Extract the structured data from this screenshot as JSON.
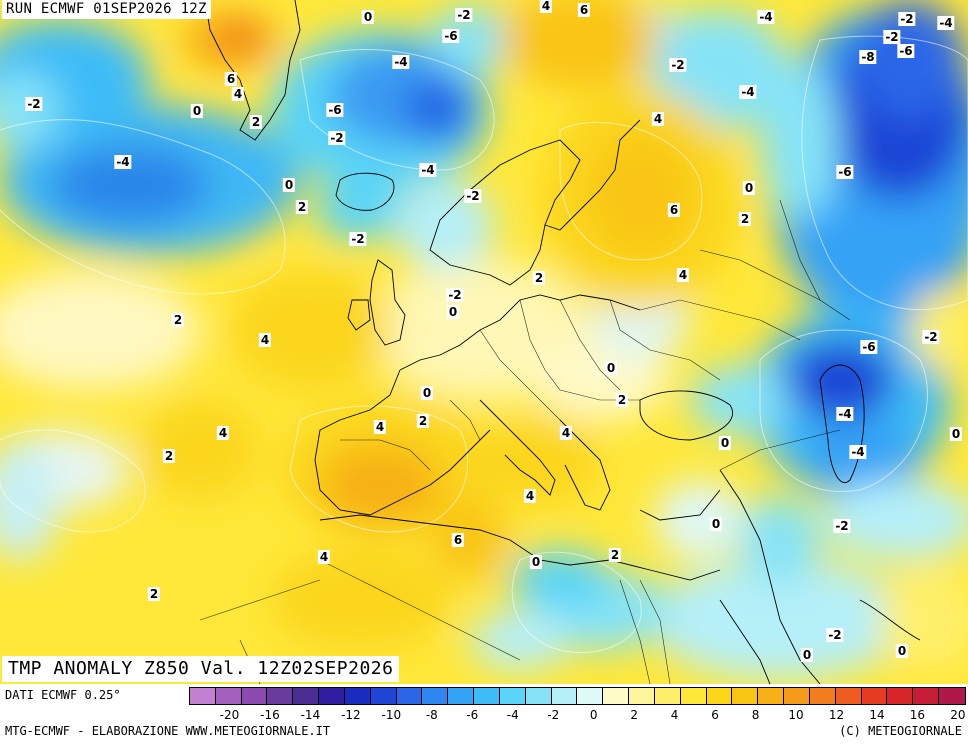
{
  "header": {
    "run_title": "RUN ECMWF 01SEP2026 12Z",
    "variable_title": "TMP ANOMALY Z850 Val. 12Z02SEP2026"
  },
  "footer": {
    "data_source": "DATI ECMWF 0.25°",
    "credit_left": "MTG-ECMWF - ELABORAZIONE WWW.METEOGIORNALE.IT",
    "credit_right": "(C) METEOGIORNALE"
  },
  "legend": {
    "colors": [
      "#c37fd2",
      "#a35fbe",
      "#8a4aae",
      "#6b3a9e",
      "#4b2d94",
      "#2f1fa0",
      "#1a2bbf",
      "#1e45d6",
      "#2a66e8",
      "#2f86f0",
      "#34a2f6",
      "#3dbcf8",
      "#5ad4f8",
      "#86e3f7",
      "#b5eff8",
      "#dff8f8",
      "#fffbc8",
      "#fff59a",
      "#fff06c",
      "#ffe83a",
      "#fbd61a",
      "#f9c514",
      "#f7b016",
      "#f6981a",
      "#f37d1e",
      "#ef5c20",
      "#e63c22",
      "#d72628",
      "#c51c38",
      "#b0184a"
    ],
    "ticks": [
      "-20",
      "-16",
      "-14",
      "-12",
      "-10",
      "-8",
      "-6",
      "-4",
      "-2",
      "0",
      "2",
      "4",
      "6",
      "8",
      "10",
      "12",
      "14",
      "16",
      "20"
    ]
  },
  "map": {
    "region": "Europe / North Atlantic",
    "contour_labels": [
      {
        "value": "0"
      },
      {
        "value": "-2"
      },
      {
        "value": "4"
      },
      {
        "value": "6"
      },
      {
        "value": "-4"
      },
      {
        "value": "-2"
      },
      {
        "value": "-2"
      },
      {
        "value": "-6"
      },
      {
        "value": "-4"
      },
      {
        "value": "-4"
      },
      {
        "value": "-8"
      },
      {
        "value": "-6"
      },
      {
        "value": "-2"
      },
      {
        "value": "6"
      },
      {
        "value": "4"
      },
      {
        "value": "2"
      },
      {
        "value": "-6"
      },
      {
        "value": "-2"
      },
      {
        "value": "0"
      },
      {
        "value": "-4"
      },
      {
        "value": "-4"
      },
      {
        "value": "4"
      },
      {
        "value": "0"
      },
      {
        "value": "2"
      },
      {
        "value": "-2"
      },
      {
        "value": "-2"
      },
      {
        "value": "6"
      },
      {
        "value": "2"
      },
      {
        "value": "-6"
      },
      {
        "value": "-4"
      },
      {
        "value": "2"
      },
      {
        "value": "4"
      },
      {
        "value": "-2"
      },
      {
        "value": "-2"
      },
      {
        "value": "0"
      },
      {
        "value": "2"
      },
      {
        "value": "4"
      },
      {
        "value": "-6"
      },
      {
        "value": "-2"
      },
      {
        "value": "0"
      },
      {
        "value": "0"
      },
      {
        "value": "2"
      },
      {
        "value": "4"
      },
      {
        "value": "4"
      },
      {
        "value": "2"
      },
      {
        "value": "-4"
      },
      {
        "value": "0"
      },
      {
        "value": "-4"
      },
      {
        "value": "0"
      },
      {
        "value": "4"
      },
      {
        "value": "4"
      },
      {
        "value": "0"
      },
      {
        "value": "-2"
      },
      {
        "value": "6"
      },
      {
        "value": "2"
      },
      {
        "value": "4"
      },
      {
        "value": "0"
      },
      {
        "value": "2"
      },
      {
        "value": "2"
      },
      {
        "value": "-2"
      },
      {
        "value": "0"
      },
      {
        "value": "0"
      },
      {
        "value": "0"
      }
    ]
  }
}
